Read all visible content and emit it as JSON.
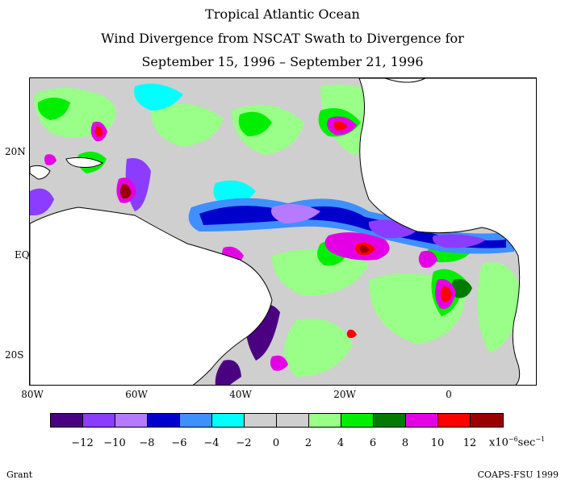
{
  "title": {
    "line1": "Tropical Atlantic Ocean",
    "line2": "Wind Divergence from NSCAT Swath to Divergence for",
    "line3": "September 15, 1996 – September 21, 1996"
  },
  "map": {
    "longitude_labels": [
      "80W",
      "60W",
      "40W",
      "20W",
      "0"
    ],
    "latitude_labels": [
      "20N",
      "EQ",
      "20S"
    ],
    "extent": {
      "lon_range": [
        -80,
        15
      ],
      "lat_range": [
        -27,
        28
      ]
    },
    "land_color": "#ffffff",
    "coastline_color": "#000000"
  },
  "colorbar": {
    "colors": [
      "#4b0082",
      "#8b3cff",
      "#b57aff",
      "#0000cd",
      "#3f8fff",
      "#00ffff",
      "#cfcfcf",
      "#cfcfcf",
      "#99ff88",
      "#00ee00",
      "#007a00",
      "#e400e4",
      "#ff0000",
      "#9a0000"
    ],
    "labels": [
      "−12",
      "−10",
      "−8",
      "−6",
      "−4",
      "−2",
      "0",
      "2",
      "4",
      "6",
      "8",
      "10",
      "12"
    ],
    "units_prefix": "x10",
    "units_exp": "−6",
    "units_suffix": "sec",
    "units_suffix_exp": "−1"
  },
  "footer": {
    "left": "Grant",
    "right": "COAPS-FSU 1999"
  }
}
